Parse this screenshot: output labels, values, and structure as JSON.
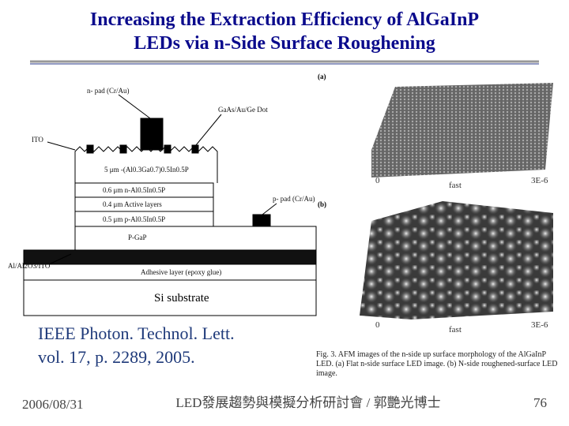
{
  "header": {
    "title_lines": [
      "Increasing the Extraction Efficiency of AlGaInP",
      "LEDs via n-Side Surface Roughening"
    ]
  },
  "structure": {
    "n_pad": "n- pad (Cr/Au)",
    "dot": "GaAs/Au/Ge Dot",
    "ito": "ITO",
    "window": "5 μm -(Al0.3Ga0.7)0.5In0.5P",
    "layers": [
      "0.6 μm n-Al0.5In0.5P",
      "0.4 μm Active layers",
      "0.5 μm p-Al0.5In0.5P"
    ],
    "pgap": "P-GaP",
    "p_pad": "p- pad (Cr/Au)",
    "mirror": "Al/Al2O3/ITO",
    "adhesive": "Adhesive layer (epoxy glue)",
    "substrate": "Si substrate"
  },
  "afm": {
    "panels": [
      {
        "label": "(a)",
        "origin": "0",
        "axis": "fast",
        "end": "3E-6"
      },
      {
        "label": "(b)",
        "origin": "0",
        "axis": "fast",
        "end": "3E-6"
      }
    ],
    "caption": [
      "Fig. 3.   AFM images of the n-side up surface morphology of the AlGaInP",
      "LED. (a) Flat n-side surface LED image. (b) N-side roughened-surface LED",
      "image."
    ]
  },
  "citation": [
    "IEEE Photon. Technol. Lett.",
    "vol. 17, p. 2289, 2005."
  ],
  "footer": {
    "date": "2006/08/31",
    "event": "LED發展趨勢與模擬分析研討會 / 郭艷光博士",
    "page": "76"
  }
}
